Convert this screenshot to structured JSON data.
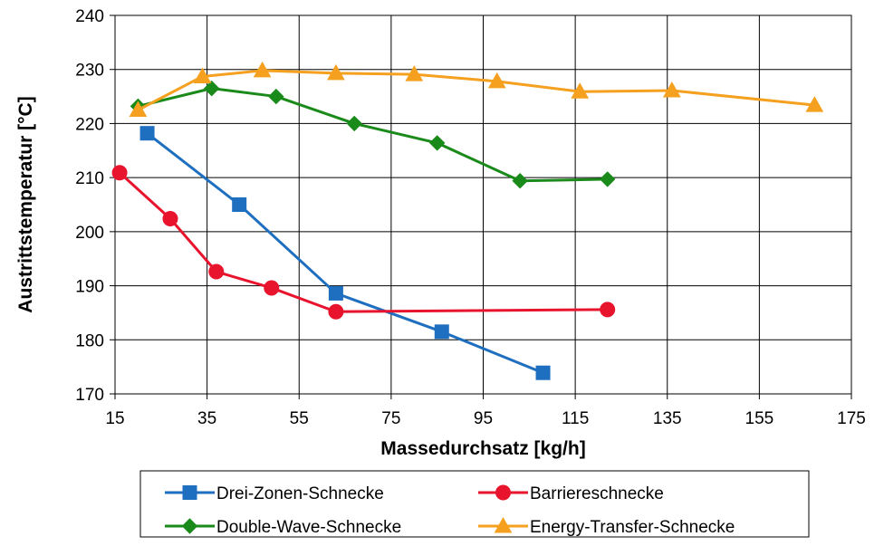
{
  "chart_data": {
    "type": "line",
    "title": "",
    "xlabel": "Massedurchsatz [kg/h]",
    "ylabel": "Austrittstemperatur [°C]",
    "xlim": [
      15,
      175
    ],
    "ylim": [
      170,
      240
    ],
    "xticks": [
      "15",
      "35",
      "55",
      "75",
      "95",
      "115",
      "135",
      "155",
      "175"
    ],
    "yticks": [
      "170",
      "180",
      "190",
      "200",
      "210",
      "220",
      "230",
      "240"
    ],
    "grid": true,
    "legend_position": "bottom",
    "series": [
      {
        "name": "Drei-Zonen-Schnecke",
        "color": "#1f6fc0",
        "marker": "square",
        "x": [
          22,
          42,
          63,
          86,
          108
        ],
        "y": [
          218.2,
          205.0,
          188.6,
          181.5,
          173.9
        ]
      },
      {
        "name": "Barriereschnecke",
        "color": "#e8142e",
        "marker": "circle",
        "x": [
          16,
          27,
          37,
          49,
          63,
          122
        ],
        "y": [
          210.9,
          202.4,
          192.6,
          189.6,
          185.2,
          185.6
        ]
      },
      {
        "name": "Double-Wave-Schnecke",
        "color": "#1a8a1a",
        "marker": "diamond",
        "x": [
          20,
          36,
          50,
          67,
          85,
          103,
          122
        ],
        "y": [
          223.2,
          226.5,
          225.0,
          220.0,
          216.4,
          209.4,
          209.7
        ]
      },
      {
        "name": "Energy-Transfer-Schnecke",
        "color": "#f5a01e",
        "marker": "triangle",
        "x": [
          20,
          34,
          47,
          63,
          80,
          98,
          116,
          136,
          167
        ],
        "y": [
          222.5,
          228.7,
          229.8,
          229.3,
          229.1,
          227.8,
          225.9,
          226.1,
          223.4
        ]
      }
    ]
  }
}
